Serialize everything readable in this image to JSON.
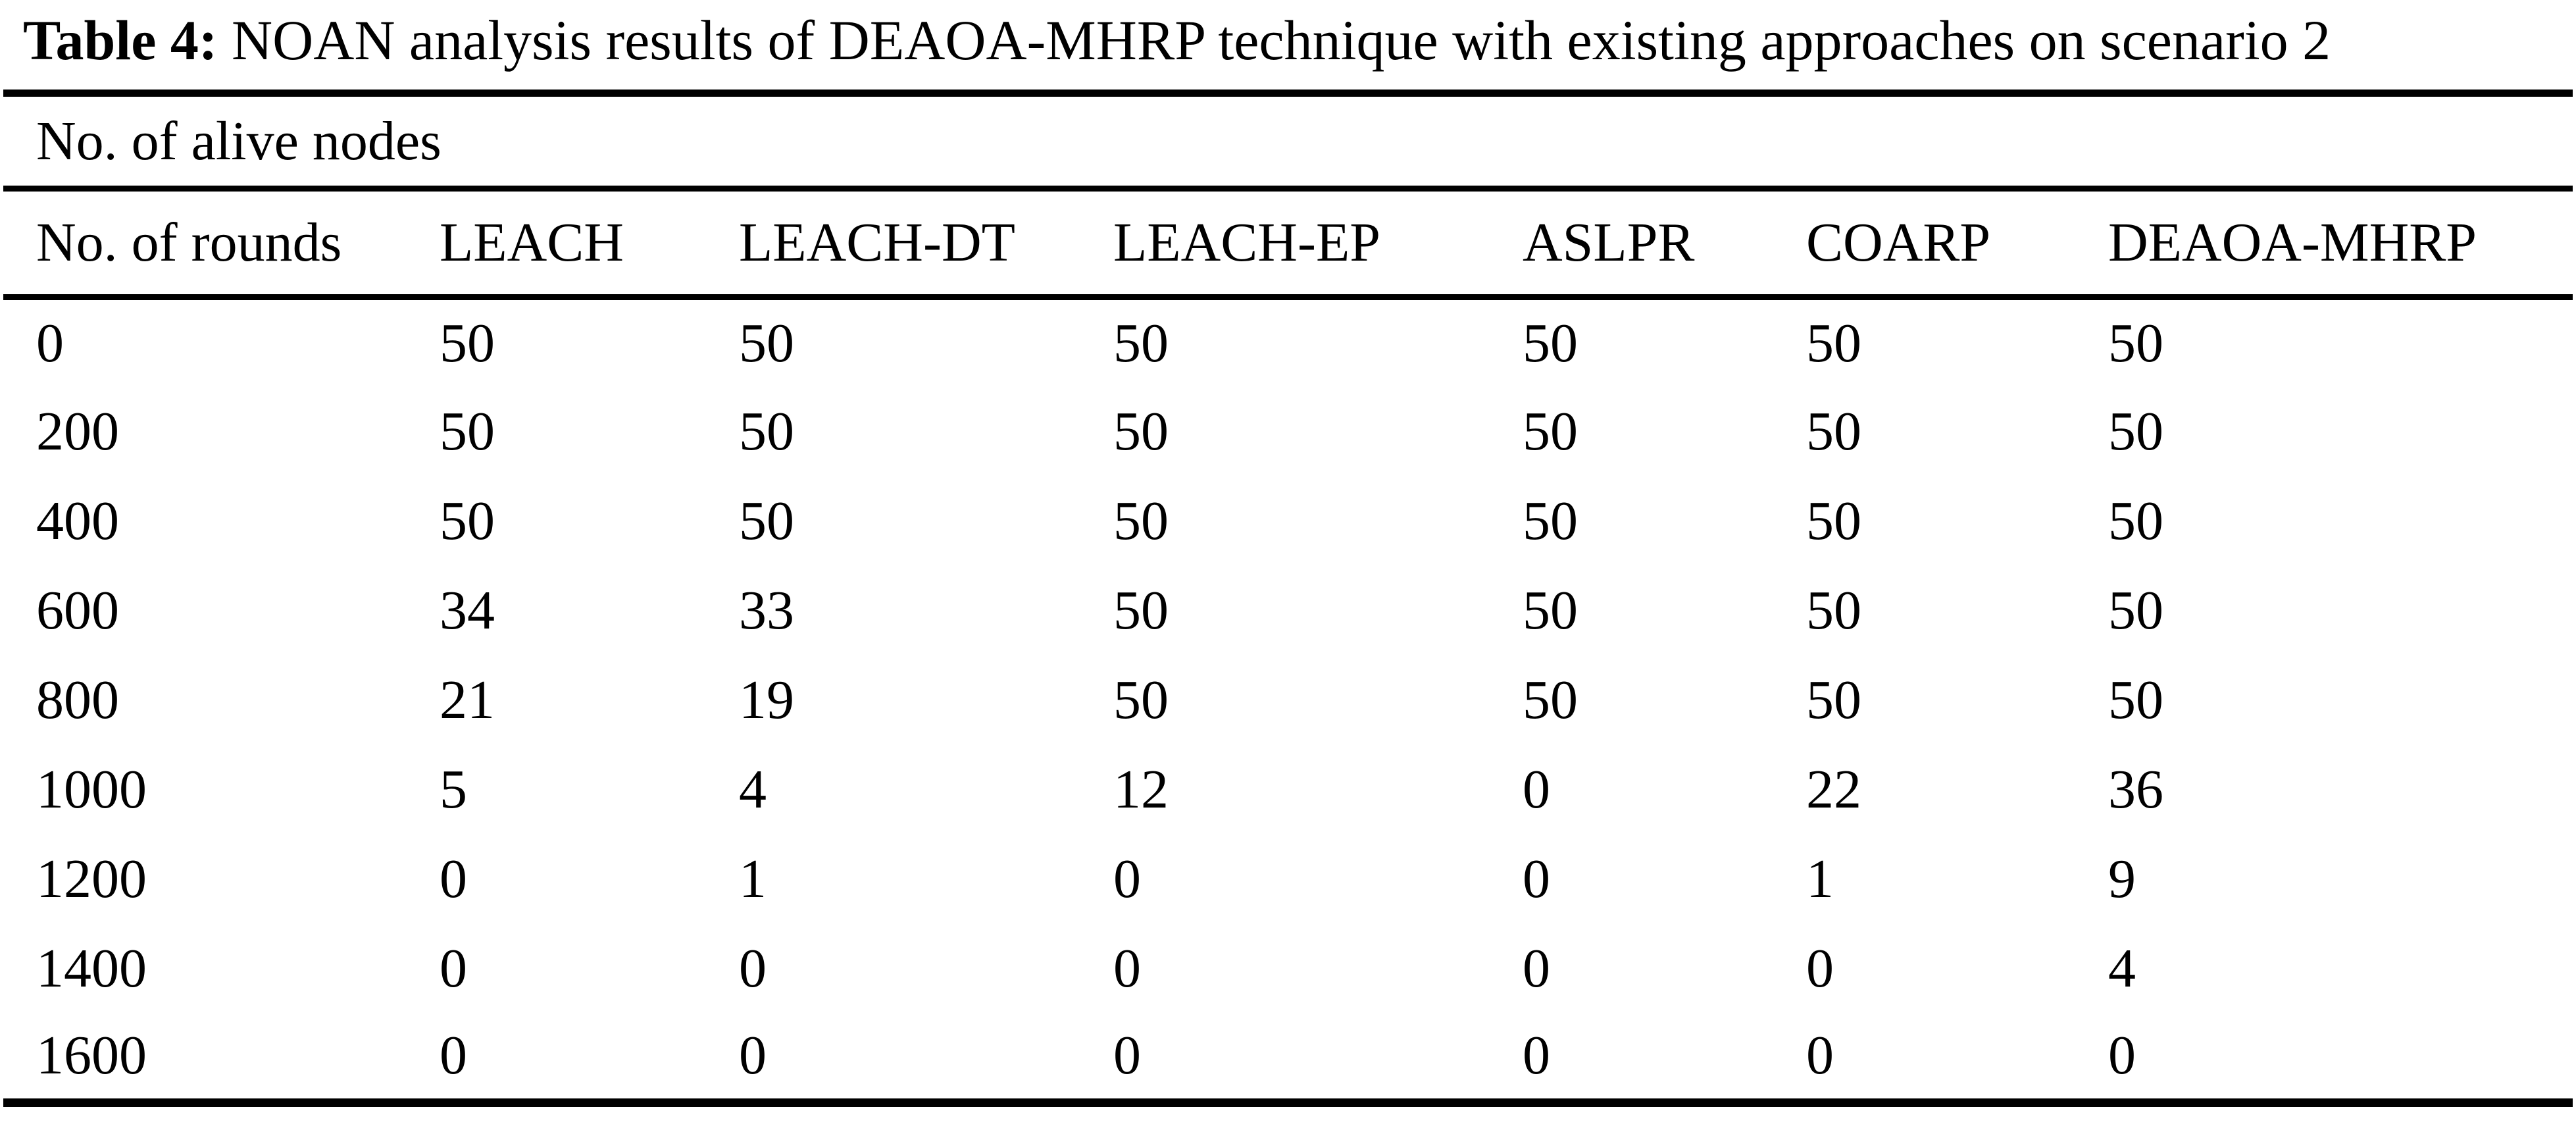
{
  "page": {
    "background": "#ffffff",
    "text_color": "#000000"
  },
  "caption": {
    "label": "Table 4:",
    "text": " NOAN analysis results of DEAOA-MHRP technique with existing approaches on scenario 2"
  },
  "table": {
    "group_header": "No. of alive nodes",
    "columns": [
      "No. of rounds",
      "LEACH",
      "LEACH-DT",
      "LEACH-EP",
      "ASLPR",
      "COARP",
      "DEAOA-MHRP"
    ],
    "rows": [
      [
        "0",
        "50",
        "50",
        "50",
        "50",
        "50",
        "50"
      ],
      [
        "200",
        "50",
        "50",
        "50",
        "50",
        "50",
        "50"
      ],
      [
        "400",
        "50",
        "50",
        "50",
        "50",
        "50",
        "50"
      ],
      [
        "600",
        "34",
        "33",
        "50",
        "50",
        "50",
        "50"
      ],
      [
        "800",
        "21",
        "19",
        "50",
        "50",
        "50",
        "50"
      ],
      [
        "1000",
        "5",
        "4",
        "12",
        "0",
        "22",
        "36"
      ],
      [
        "1200",
        "0",
        "1",
        "0",
        "0",
        "1",
        "9"
      ],
      [
        "1400",
        "0",
        "0",
        "0",
        "0",
        "0",
        "4"
      ],
      [
        "1600",
        "0",
        "0",
        "0",
        "0",
        "0",
        "0"
      ]
    ]
  },
  "chart_data": {
    "type": "table",
    "title": "Table 4: NOAN analysis results of DEAOA-MHRP technique with existing approaches on scenario 2",
    "group_header": "No. of alive nodes",
    "row_header": "No. of rounds",
    "categories": [
      0,
      200,
      400,
      600,
      800,
      1000,
      1200,
      1400,
      1600
    ],
    "series": [
      {
        "name": "LEACH",
        "values": [
          50,
          50,
          50,
          34,
          21,
          5,
          0,
          0,
          0
        ]
      },
      {
        "name": "LEACH-DT",
        "values": [
          50,
          50,
          50,
          33,
          19,
          4,
          1,
          0,
          0
        ]
      },
      {
        "name": "LEACH-EP",
        "values": [
          50,
          50,
          50,
          50,
          50,
          12,
          0,
          0,
          0
        ]
      },
      {
        "name": "ASLPR",
        "values": [
          50,
          50,
          50,
          50,
          50,
          0,
          0,
          0,
          0
        ]
      },
      {
        "name": "COARP",
        "values": [
          50,
          50,
          50,
          50,
          50,
          22,
          1,
          0,
          0
        ]
      },
      {
        "name": "DEAOA-MHRP",
        "values": [
          50,
          50,
          50,
          50,
          50,
          36,
          9,
          4,
          0
        ]
      }
    ]
  }
}
